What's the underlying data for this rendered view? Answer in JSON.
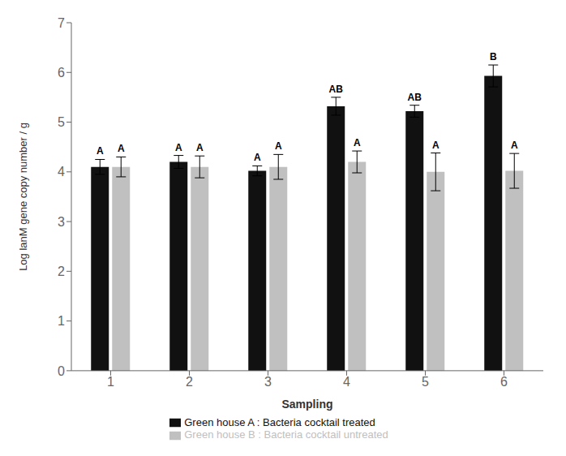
{
  "chart_data": {
    "type": "bar",
    "xlabel": "Sampling",
    "ylabel": "Log lanM gene copy number / g",
    "categories": [
      "1",
      "2",
      "3",
      "4",
      "5",
      "6"
    ],
    "series": [
      {
        "name": "Green house A : Bacteria cocktail treated",
        "color": "#111111",
        "values": [
          4.1,
          4.2,
          4.02,
          5.32,
          5.22,
          5.93
        ],
        "errors": [
          0.15,
          0.13,
          0.1,
          0.18,
          0.12,
          0.22
        ],
        "significance_labels": [
          "A",
          "A",
          "A",
          "AB",
          "AB",
          "B"
        ]
      },
      {
        "name": "Green house B : Bacteria cocktail untreated",
        "color": "#c0c0c0",
        "values": [
          4.1,
          4.1,
          4.1,
          4.2,
          4.0,
          4.02
        ],
        "errors": [
          0.2,
          0.22,
          0.25,
          0.22,
          0.38,
          0.35
        ],
        "significance_labels": [
          "A",
          "A",
          "A",
          "A",
          "A",
          "A"
        ]
      }
    ],
    "ylim": [
      0,
      7
    ],
    "yticks": [
      0,
      1,
      2,
      3,
      4,
      5,
      6,
      7
    ],
    "grid": false,
    "legend": "bottom"
  }
}
